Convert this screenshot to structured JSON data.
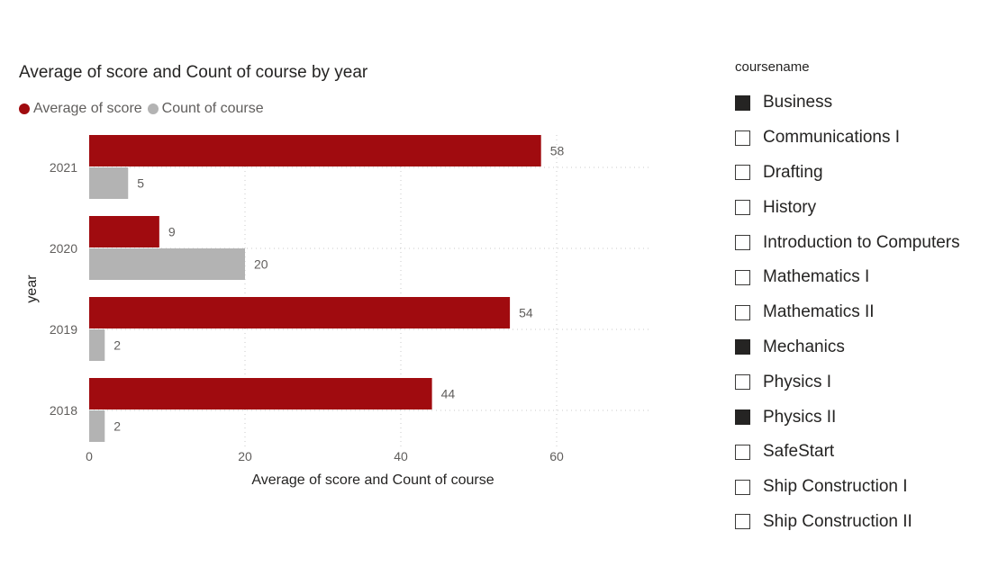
{
  "chart_data": {
    "type": "bar",
    "orientation": "horizontal",
    "title": "Average of score and Count of course by year",
    "xlabel": "Average of score and Count of course",
    "ylabel": "year",
    "categories": [
      "2021",
      "2020",
      "2019",
      "2018"
    ],
    "series": [
      {
        "name": "Average of score",
        "color": "#a00b0f",
        "values": [
          58,
          9,
          54,
          44
        ]
      },
      {
        "name": "Count of course",
        "color": "#b3b3b3",
        "values": [
          5,
          20,
          2,
          2
        ]
      }
    ],
    "xlim": [
      0,
      72
    ],
    "xticks": [
      0,
      20,
      40,
      60
    ],
    "grid": true,
    "legend": "top-left",
    "data_labels": true
  },
  "slicer": {
    "title": "coursename",
    "items": [
      {
        "label": "Business",
        "checked": true
      },
      {
        "label": "Communications I",
        "checked": false
      },
      {
        "label": "Drafting",
        "checked": false
      },
      {
        "label": "History",
        "checked": false
      },
      {
        "label": "Introduction to Computers",
        "checked": false
      },
      {
        "label": "Mathematics I",
        "checked": false
      },
      {
        "label": "Mathematics II",
        "checked": false
      },
      {
        "label": "Mechanics",
        "checked": true
      },
      {
        "label": "Physics I",
        "checked": false
      },
      {
        "label": "Physics II",
        "checked": true
      },
      {
        "label": "SafeStart",
        "checked": false
      },
      {
        "label": "Ship Construction I",
        "checked": false
      },
      {
        "label": "Ship Construction II",
        "checked": false
      }
    ]
  }
}
